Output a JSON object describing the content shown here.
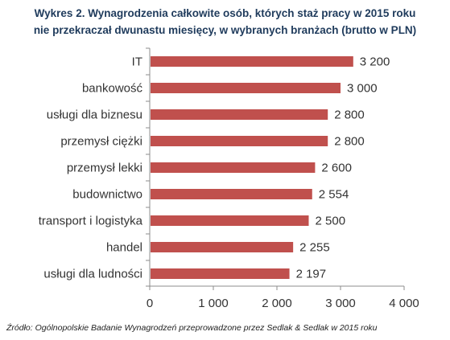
{
  "title_lines": [
    "Wykres 2. Wynagrodzenia całkowite osób, których staż pracy w 2015 roku",
    "nie przekraczał dwunastu miesięcy, w wybranych branżach (brutto w PLN)"
  ],
  "source": "Źródło: Ogólnopolskie Badanie Wynagrodzeń przeprowadzone  przez Sedlak & Sedlak w 2015 roku",
  "colors": {
    "bar": "#c0504d",
    "title": "#1f3b5c",
    "axis": "#8c8c8c",
    "text": "#333333"
  },
  "chart_data": {
    "type": "bar",
    "orientation": "horizontal",
    "title": "Wykres 2. Wynagrodzenia całkowite osób, których staż pracy w 2015 roku nie przekraczał dwunastu miesięcy, w wybranych branżach (brutto w PLN)",
    "categories": [
      "IT",
      "bankowość",
      "usługi dla biznesu",
      "przemysł ciężki",
      "przemysł lekki",
      "budownictwo",
      "transport i logistyka",
      "handel",
      "usługi dla ludności"
    ],
    "values": [
      3200,
      3000,
      2800,
      2800,
      2600,
      2554,
      2500,
      2255,
      2197
    ],
    "value_labels": [
      "3 200",
      "3 000",
      "2 800",
      "2 800",
      "2 600",
      "2 554",
      "2 500",
      "2 255",
      "2 197"
    ],
    "xlim": [
      0,
      4000
    ],
    "xticks": [
      0,
      1000,
      2000,
      3000,
      4000
    ],
    "xtick_labels": [
      "0",
      "1 000",
      "2 000",
      "3 000",
      "4 000"
    ],
    "grid": false,
    "legend": "none"
  }
}
